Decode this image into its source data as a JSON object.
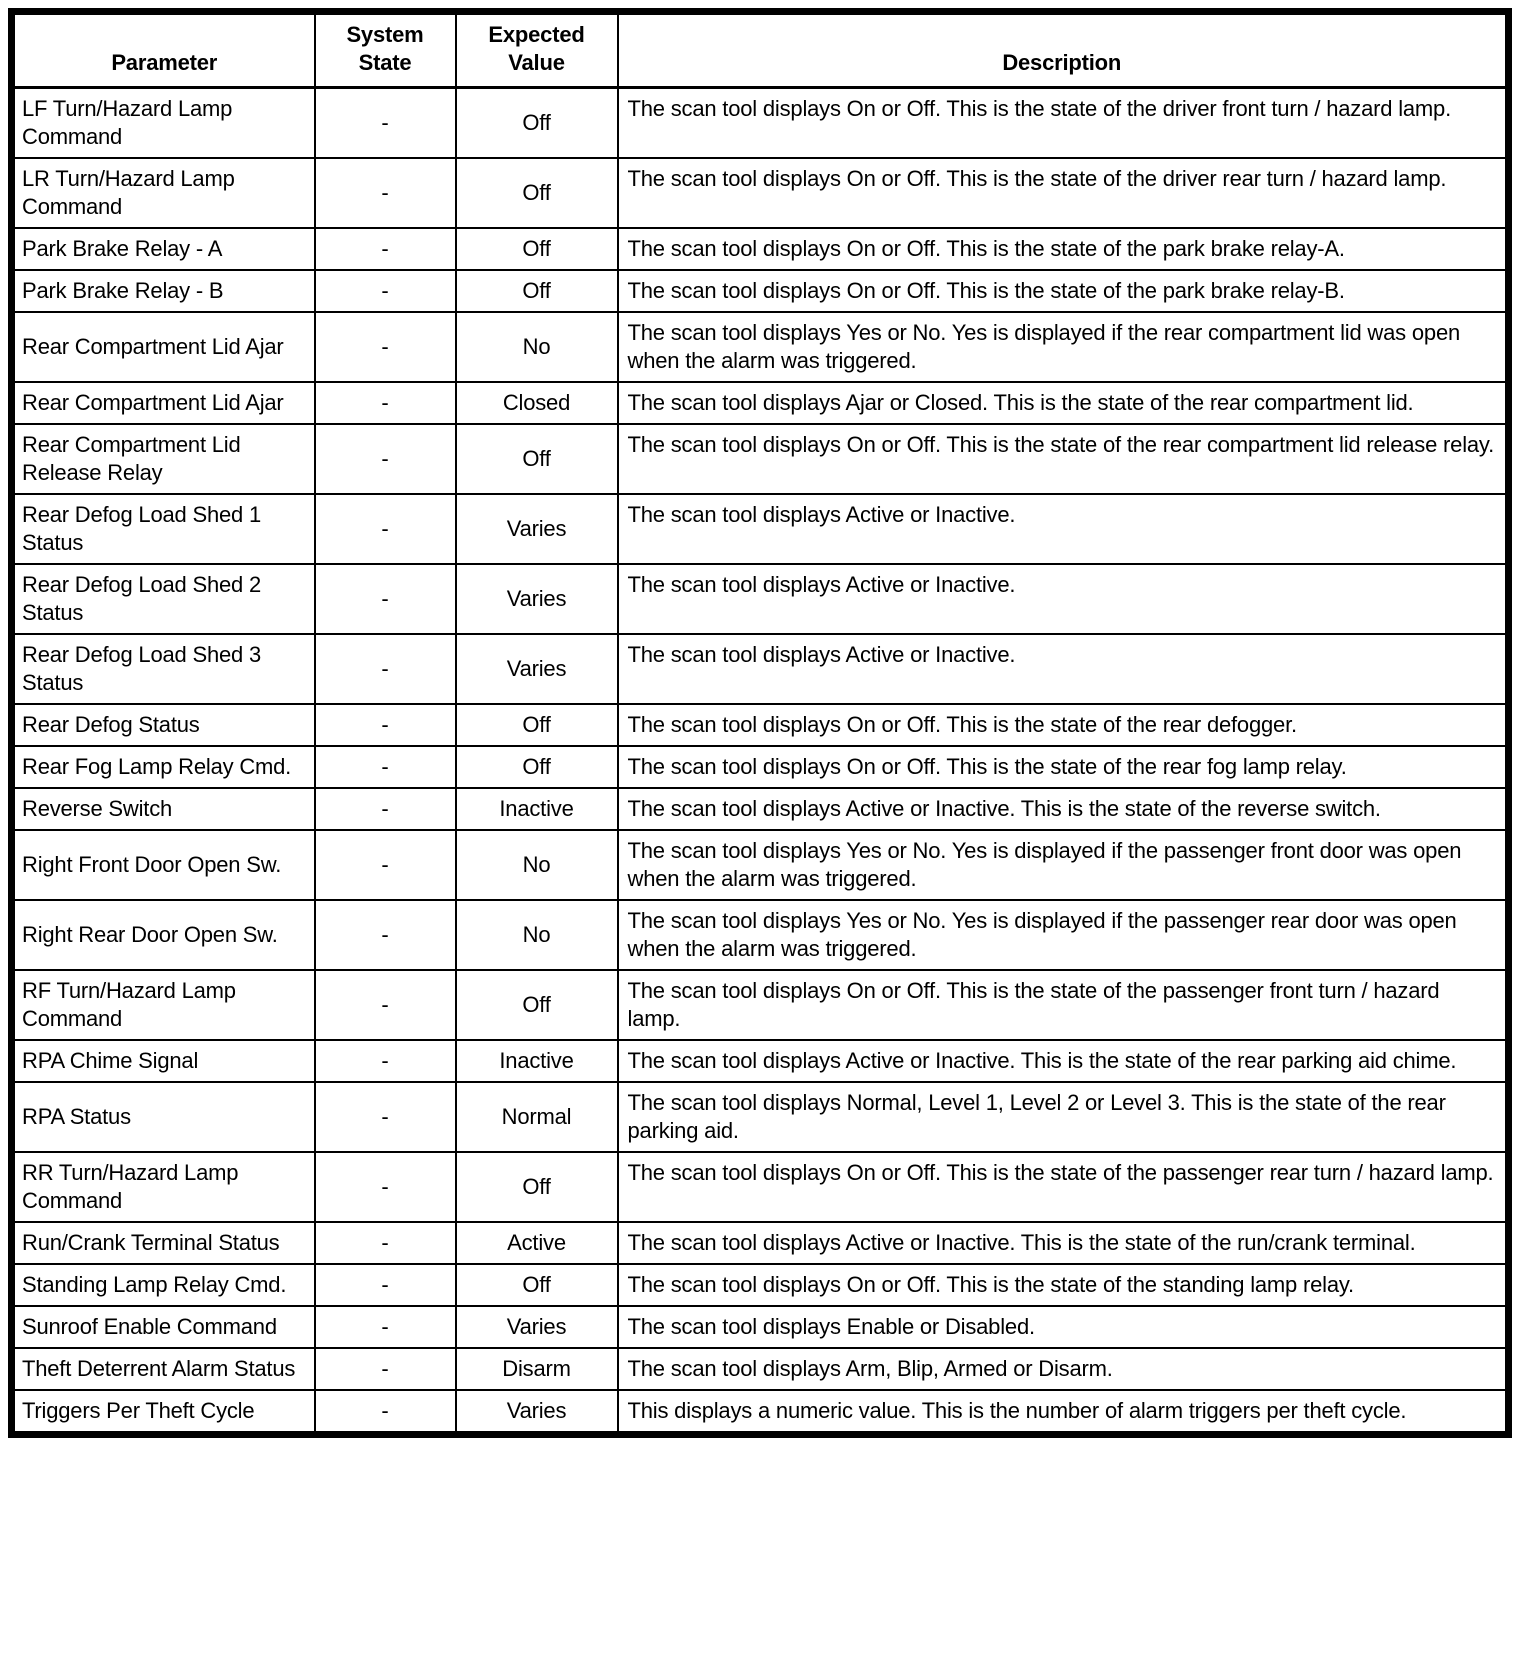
{
  "table": {
    "headers": [
      "Parameter",
      "System State",
      "Expected Value",
      "Description"
    ],
    "rows": [
      {
        "parameter": "LF Turn/Hazard Lamp Command",
        "system_state": "-",
        "expected_value": "Off",
        "description": "The scan tool displays On or Off. This is the state of the driver front turn / hazard lamp."
      },
      {
        "parameter": "LR Turn/Hazard Lamp Command",
        "system_state": "-",
        "expected_value": "Off",
        "description": "The scan tool displays On or Off. This is the state of the driver rear turn / hazard lamp."
      },
      {
        "parameter": "Park Brake Relay - A",
        "system_state": "-",
        "expected_value": "Off",
        "description": "The scan tool displays On or Off. This is the state of the park brake relay-A."
      },
      {
        "parameter": "Park Brake Relay - B",
        "system_state": "-",
        "expected_value": "Off",
        "description": "The scan tool displays On or Off. This is the state of the park brake relay-B."
      },
      {
        "parameter": "Rear Compartment Lid Ajar",
        "system_state": "-",
        "expected_value": "No",
        "description": "The scan tool displays Yes or No. Yes is displayed if the rear compartment lid was open when the alarm was triggered."
      },
      {
        "parameter": "Rear Compartment Lid Ajar",
        "system_state": "-",
        "expected_value": "Closed",
        "description": "The scan tool displays Ajar or Closed. This is the state of the rear compartment lid."
      },
      {
        "parameter": "Rear Compartment Lid Release Relay",
        "system_state": "-",
        "expected_value": "Off",
        "description": "The scan tool displays On or Off. This is the state of the rear compartment lid release relay."
      },
      {
        "parameter": "Rear Defog Load Shed 1 Status",
        "system_state": "-",
        "expected_value": "Varies",
        "description": "The scan tool displays Active or Inactive."
      },
      {
        "parameter": "Rear Defog Load Shed 2 Status",
        "system_state": "-",
        "expected_value": "Varies",
        "description": "The scan tool displays Active or Inactive."
      },
      {
        "parameter": "Rear Defog Load Shed 3 Status",
        "system_state": "-",
        "expected_value": "Varies",
        "description": "The scan tool displays Active or Inactive."
      },
      {
        "parameter": "Rear Defog Status",
        "system_state": "-",
        "expected_value": "Off",
        "description": "The scan tool displays On or Off. This is the state of the rear defogger."
      },
      {
        "parameter": "Rear Fog Lamp Relay Cmd.",
        "system_state": "-",
        "expected_value": "Off",
        "description": "The scan tool displays On or Off. This is the state of the rear fog lamp relay."
      },
      {
        "parameter": "Reverse Switch",
        "system_state": "-",
        "expected_value": "Inactive",
        "description": "The scan tool displays Active or Inactive. This is the state of the reverse switch."
      },
      {
        "parameter": "Right Front Door Open Sw.",
        "system_state": "-",
        "expected_value": "No",
        "description": "The scan tool displays Yes or No. Yes is displayed if the passenger front door was open when the alarm was triggered."
      },
      {
        "parameter": "Right Rear Door Open Sw.",
        "system_state": "-",
        "expected_value": "No",
        "description": "The scan tool displays Yes or No. Yes is displayed if the passenger rear door was open when the alarm was triggered."
      },
      {
        "parameter": "RF Turn/Hazard Lamp Command",
        "system_state": "-",
        "expected_value": "Off",
        "description": "The scan tool displays On or Off. This is the state of the passenger front turn / hazard lamp."
      },
      {
        "parameter": "RPA Chime Signal",
        "system_state": "-",
        "expected_value": "Inactive",
        "description": "The scan tool displays Active or Inactive. This is the state of the rear parking aid chime."
      },
      {
        "parameter": "RPA Status",
        "system_state": "-",
        "expected_value": "Normal",
        "description": "The scan tool displays Normal, Level 1, Level 2 or Level 3. This is the state of the rear parking aid."
      },
      {
        "parameter": "RR Turn/Hazard Lamp Command",
        "system_state": "-",
        "expected_value": "Off",
        "description": "The scan tool displays On or Off. This is the state of the passenger rear turn / hazard lamp."
      },
      {
        "parameter": "Run/Crank Terminal Status",
        "system_state": "-",
        "expected_value": "Active",
        "description": "The scan tool displays Active or Inactive. This is the state of the run/crank terminal."
      },
      {
        "parameter": "Standing Lamp Relay Cmd.",
        "system_state": "-",
        "expected_value": "Off",
        "description": "The scan tool displays On or Off. This is the state of the standing lamp relay."
      },
      {
        "parameter": "Sunroof Enable Command",
        "system_state": "-",
        "expected_value": "Varies",
        "description": "The scan tool displays Enable or Disabled."
      },
      {
        "parameter": "Theft Deterrent Alarm Status",
        "system_state": "-",
        "expected_value": "Disarm",
        "description": "The scan tool displays Arm, Blip, Armed or Disarm."
      },
      {
        "parameter": "Triggers Per Theft Cycle",
        "system_state": "-",
        "expected_value": "Varies",
        "description": "This displays a numeric value. This is the number of alarm triggers per theft cycle."
      }
    ]
  }
}
